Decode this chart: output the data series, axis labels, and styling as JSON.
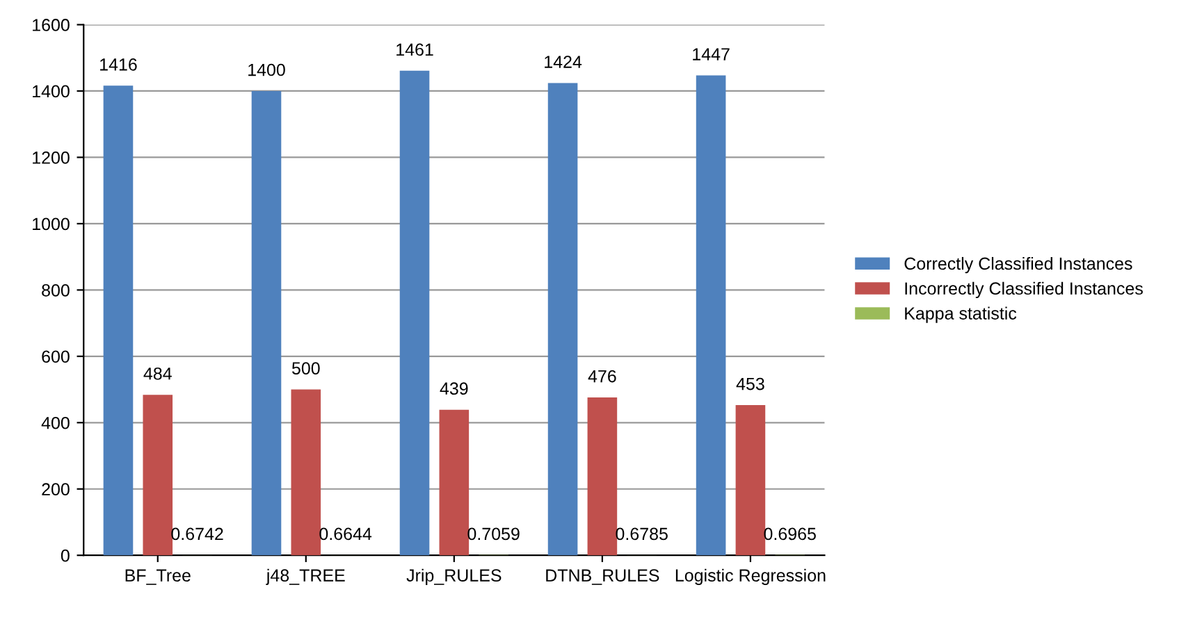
{
  "chart_data": {
    "type": "bar",
    "categories": [
      "BF_Tree",
      "j48_TREE",
      "Jrip_RULES",
      "DTNB_RULES",
      "Logistic Regression"
    ],
    "series": [
      {
        "name": "Correctly Classified Instances",
        "color": "#4f81bd",
        "values": [
          1416,
          1400,
          1461,
          1424,
          1447
        ]
      },
      {
        "name": "Incorrectly Classified Instances",
        "color": "#c0504d",
        "values": [
          484,
          500,
          439,
          476,
          453
        ]
      },
      {
        "name": "Kappa statistic",
        "color": "#9bbb59",
        "values": [
          0.6742,
          0.6644,
          0.7059,
          0.6785,
          0.6965
        ]
      }
    ],
    "ylim": [
      0,
      1600
    ],
    "yticks": [
      0,
      200,
      400,
      600,
      800,
      1000,
      1200,
      1400,
      1600
    ],
    "grid": "y",
    "legend": "right",
    "data_labels": true
  }
}
